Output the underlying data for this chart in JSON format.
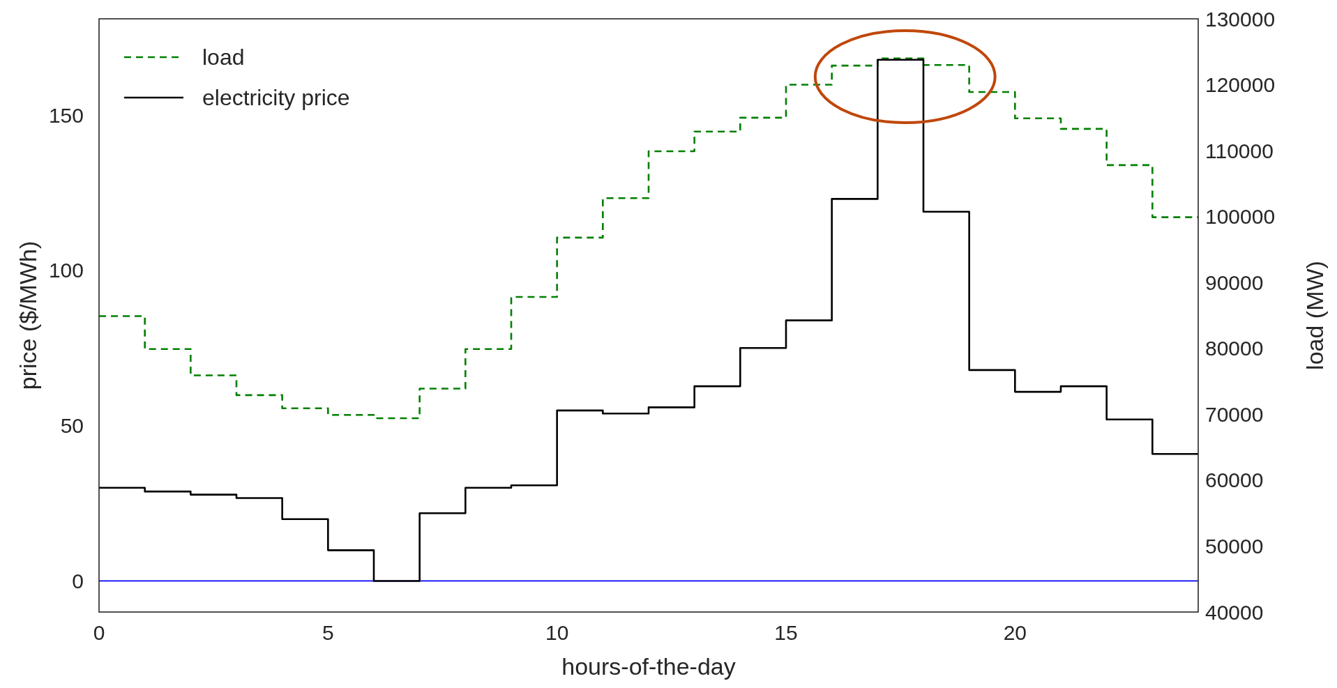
{
  "chart_data": {
    "type": "step",
    "xlabel": "hours-of-the-day",
    "ylabel": "price ($/MWh)",
    "y2label": "load (MW)",
    "x": [
      0,
      1,
      2,
      3,
      4,
      5,
      6,
      7,
      8,
      9,
      10,
      11,
      12,
      13,
      14,
      15,
      16,
      17,
      18,
      19,
      20,
      21,
      22,
      23,
      24
    ],
    "xlim": [
      0,
      24
    ],
    "xticks": [
      0,
      5,
      10,
      15,
      20
    ],
    "ylim": [
      -10,
      181
    ],
    "yticks": [
      0,
      50,
      100,
      150
    ],
    "y2lim": [
      40000,
      130000
    ],
    "y2ticks": [
      40000,
      50000,
      60000,
      70000,
      80000,
      90000,
      100000,
      110000,
      120000,
      130000
    ],
    "series": [
      {
        "name": "load",
        "color": "#008000",
        "axis": "y2",
        "line_style": "dashed",
        "values": [
          84900,
          79900,
          75900,
          72900,
          70900,
          69900,
          69400,
          73900,
          79900,
          87800,
          96800,
          102800,
          109900,
          112900,
          115000,
          120000,
          122900,
          124000,
          123000,
          118900,
          114900,
          113300,
          107800,
          99900,
          99900
        ]
      },
      {
        "name": "electricity price",
        "color": "#000000",
        "line_style": "solid",
        "values": [
          30,
          28.8,
          27.8,
          26.7,
          19.9,
          9.9,
          0,
          21.8,
          30,
          30.8,
          54.9,
          53.9,
          55.9,
          62.7,
          75,
          83.9,
          123,
          167.8,
          118.9,
          67.9,
          60.9,
          62.7,
          52,
          40.9,
          40.9
        ]
      }
    ],
    "ref_lines": [
      {
        "axis": "y",
        "value": 0,
        "color": "#0000ff"
      }
    ],
    "legend": "top left",
    "grid": false
  }
}
